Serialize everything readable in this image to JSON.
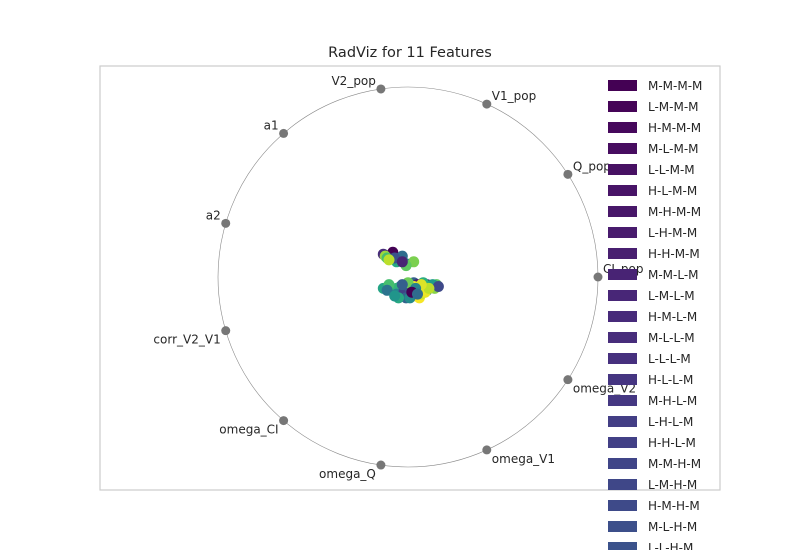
{
  "chart_data": {
    "type": "scatter",
    "title": "RadViz for 11 Features",
    "features": [
      "CI_pop",
      "Q_pop",
      "V1_pop",
      "V2_pop",
      "a1",
      "a2",
      "corr_V2_V1",
      "omega_CI",
      "omega_Q",
      "omega_V1",
      "omega_V2"
    ],
    "anchor_angles_deg": [
      0,
      32.7,
      65.5,
      98.2,
      130.9,
      163.6,
      196.4,
      229.1,
      261.8,
      294.5,
      327.3
    ],
    "classes": [
      "M-M-M-M",
      "L-M-M-M",
      "H-M-M-M",
      "M-L-M-M",
      "L-L-M-M",
      "H-L-M-M",
      "M-H-M-M",
      "L-H-M-M",
      "H-H-M-M",
      "M-M-L-M",
      "L-M-L-M",
      "H-M-L-M",
      "M-L-L-M",
      "L-L-L-M",
      "H-L-L-M",
      "M-H-L-M",
      "L-H-L-M",
      "H-H-L-M",
      "M-M-H-M",
      "L-M-H-M",
      "H-M-H-M",
      "M-L-H-M",
      "L-L-H-M"
    ],
    "legend_colors": [
      "#440154",
      "#450457",
      "#46085c",
      "#470d60",
      "#471163",
      "#481467",
      "#481769",
      "#481b6d",
      "#481f70",
      "#482374",
      "#482677",
      "#472a7a",
      "#472d7b",
      "#46307e",
      "#453581",
      "#453882",
      "#433e85",
      "#424086",
      "#404588",
      "#3f4788",
      "#3e4a89",
      "#3c4f8a",
      "#3b528b"
    ],
    "colormap": "viridis",
    "points": [
      {
        "x": -0.08,
        "y": 0.13,
        "c": 0.0
      },
      {
        "x": -0.13,
        "y": 0.12,
        "c": 0.12
      },
      {
        "x": -0.03,
        "y": 0.11,
        "c": 0.35
      },
      {
        "x": -0.01,
        "y": 0.07,
        "c": 0.45
      },
      {
        "x": -0.06,
        "y": 0.08,
        "c": 0.6
      },
      {
        "x": -0.12,
        "y": 0.11,
        "c": 0.85
      },
      {
        "x": -0.11,
        "y": 0.1,
        "c": 0.7
      },
      {
        "x": -0.07,
        "y": 0.1,
        "c": 0.25
      },
      {
        "x": -0.1,
        "y": 0.09,
        "c": 0.9
      },
      {
        "x": 0.03,
        "y": 0.08,
        "c": 0.8
      },
      {
        "x": -0.01,
        "y": 0.06,
        "c": 0.75
      },
      {
        "x": -0.03,
        "y": 0.08,
        "c": 0.1
      },
      {
        "x": 0.1,
        "y": -0.04,
        "c": 0.15
      },
      {
        "x": 0.03,
        "y": -0.03,
        "c": 0.3
      },
      {
        "x": 0.0,
        "y": -0.05,
        "c": 0.2
      },
      {
        "x": -0.01,
        "y": -0.08,
        "c": 0.55
      },
      {
        "x": -0.04,
        "y": -0.05,
        "c": 0.5
      },
      {
        "x": -0.06,
        "y": -0.06,
        "c": 0.65
      },
      {
        "x": -0.06,
        "y": -0.09,
        "c": 0.45
      },
      {
        "x": -0.04,
        "y": -0.1,
        "c": 0.4
      },
      {
        "x": -0.02,
        "y": -0.07,
        "c": 0.2
      },
      {
        "x": 0.01,
        "y": -0.06,
        "c": 0.28
      },
      {
        "x": 0.03,
        "y": -0.07,
        "c": 0.35
      },
      {
        "x": 0.05,
        "y": -0.05,
        "c": 0.18
      },
      {
        "x": 0.06,
        "y": -0.08,
        "c": 0.5
      },
      {
        "x": 0.08,
        "y": -0.06,
        "c": 0.85
      },
      {
        "x": 0.1,
        "y": -0.07,
        "c": 0.42
      },
      {
        "x": 0.12,
        "y": -0.05,
        "c": 0.6
      },
      {
        "x": 0.14,
        "y": -0.06,
        "c": 0.82
      },
      {
        "x": 0.15,
        "y": -0.04,
        "c": 0.75
      },
      {
        "x": 0.13,
        "y": -0.04,
        "c": 0.55
      },
      {
        "x": 0.16,
        "y": -0.05,
        "c": 0.22
      },
      {
        "x": 0.08,
        "y": -0.03,
        "c": 0.62
      },
      {
        "x": 0.05,
        "y": -0.04,
        "c": 0.08
      },
      {
        "x": 0.02,
        "y": -0.09,
        "c": 0.88
      },
      {
        "x": 0.04,
        "y": -0.1,
        "c": 0.96
      },
      {
        "x": 0.06,
        "y": -0.11,
        "c": 0.99
      },
      {
        "x": 0.07,
        "y": -0.09,
        "c": 0.92
      },
      {
        "x": 0.09,
        "y": -0.08,
        "c": 0.97
      },
      {
        "x": 0.05,
        "y": -0.07,
        "c": 0.94
      },
      {
        "x": 0.03,
        "y": -0.05,
        "c": 0.98
      },
      {
        "x": 0.11,
        "y": -0.06,
        "c": 0.9
      },
      {
        "x": 0.07,
        "y": -0.04,
        "c": 0.95
      },
      {
        "x": -0.01,
        "y": -0.11,
        "c": 0.32
      },
      {
        "x": 0.01,
        "y": -0.11,
        "c": 0.48
      },
      {
        "x": -0.05,
        "y": -0.11,
        "c": 0.6
      },
      {
        "x": -0.13,
        "y": -0.06,
        "c": 0.58
      },
      {
        "x": -0.1,
        "y": -0.04,
        "c": 0.7
      },
      {
        "x": -0.11,
        "y": -0.07,
        "c": 0.38
      },
      {
        "x": -0.07,
        "y": -0.1,
        "c": 0.52
      },
      {
        "x": 0.0,
        "y": -0.03,
        "c": 0.78
      },
      {
        "x": -0.03,
        "y": -0.04,
        "c": 0.3
      },
      {
        "x": 0.04,
        "y": -0.06,
        "c": 0.45
      },
      {
        "x": 0.02,
        "y": -0.08,
        "c": 0.0
      },
      {
        "x": 0.05,
        "y": -0.09,
        "c": 0.35
      }
    ]
  }
}
